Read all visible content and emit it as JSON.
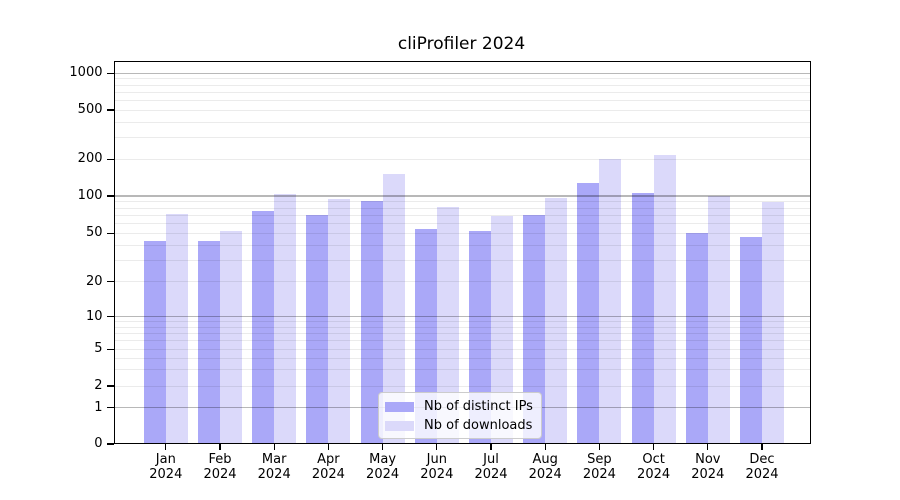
{
  "figure": {
    "background": "#ffffff"
  },
  "chart_data": {
    "type": "bar",
    "title": "cliProfiler 2024",
    "categories": [
      "Jan 2024",
      "Feb 2024",
      "Mar 2024",
      "Apr 2024",
      "May 2024",
      "Jun 2024",
      "Jul 2024",
      "Aug 2024",
      "Sep 2024",
      "Oct 2024",
      "Nov 2024",
      "Dec 2024"
    ],
    "series": [
      {
        "name": "Nb of distinct IPs",
        "color": "#aaa8f8",
        "values": [
          43,
          43,
          75,
          70,
          91,
          54,
          52,
          70,
          127,
          105,
          50,
          47
        ]
      },
      {
        "name": "Nb of downloads",
        "color": "#dbd9fa",
        "values": [
          72,
          52,
          104,
          95,
          152,
          81,
          69,
          97,
          200,
          216,
          100,
          90
        ]
      }
    ],
    "xlabel": "",
    "ylabel": "",
    "yscale": "symlog",
    "y_ticks": [
      0,
      1,
      2,
      5,
      10,
      20,
      50,
      100,
      200,
      500,
      1000
    ],
    "ylim": [
      0,
      1270
    ],
    "grid": "both",
    "legend_position": "lower center"
  },
  "colors": {
    "major_grid": "rgba(0,0,0,0.28)",
    "minor_grid": "rgba(0,0,0,0.08)",
    "spine": "#000000"
  }
}
